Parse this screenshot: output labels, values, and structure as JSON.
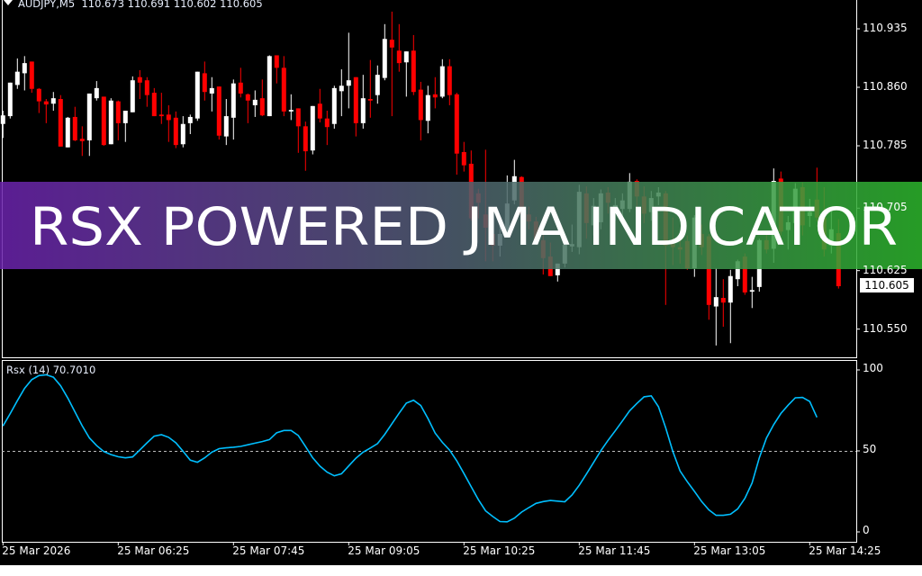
{
  "header": {
    "symbol": "AUDJPY,M5",
    "ohlc": "110.673 110.691 110.602 110.605"
  },
  "banner": {
    "text": "RSX POWERED JMA INDICATOR",
    "gradient_start": "#6a22ab",
    "gradient_mid": "#4f6070",
    "gradient_end": "#2cb52c"
  },
  "colors": {
    "background": "#000000",
    "bull_candle": "#ffffff",
    "bear_candle": "#ff0000",
    "rsx_line": "#00bfff",
    "axis": "#ffffff"
  },
  "current_price": "110.605",
  "indicator_label": "Rsx (14) 70.7010",
  "chart_data": [
    {
      "type": "candlestick",
      "title": "AUDJPY,M5",
      "y_ticks": [
        "110.935",
        "110.860",
        "110.785",
        "110.705",
        "110.625",
        "110.550"
      ],
      "x_ticks": [
        "25 Mar 2026",
        "25 Mar 06:25",
        "25 Mar 07:45",
        "25 Mar 09:05",
        "25 Mar 10:25",
        "25 Mar 11:45",
        "25 Mar 13:05",
        "25 Mar 14:25"
      ],
      "ylim": [
        110.515,
        110.972
      ],
      "ohlc_fields": [
        "open",
        "high",
        "low",
        "close"
      ],
      "candles": [
        [
          110.813,
          110.83,
          110.795,
          110.824
        ],
        [
          110.823,
          110.866,
          110.82,
          110.866
        ],
        [
          110.863,
          110.897,
          110.858,
          110.88
        ],
        [
          110.878,
          110.9,
          110.856,
          110.891
        ],
        [
          110.893,
          110.893,
          110.853,
          110.858
        ],
        [
          110.858,
          110.859,
          110.827,
          110.842
        ],
        [
          110.842,
          110.845,
          110.814,
          110.838
        ],
        [
          110.839,
          110.854,
          110.83,
          110.846
        ],
        [
          110.845,
          110.85,
          110.784,
          110.784
        ],
        [
          110.783,
          110.822,
          110.783,
          110.821
        ],
        [
          110.822,
          110.835,
          110.791,
          110.792
        ],
        [
          110.794,
          110.81,
          110.772,
          110.791
        ],
        [
          110.792,
          110.852,
          110.772,
          110.852
        ],
        [
          110.846,
          110.868,
          110.843,
          110.859
        ],
        [
          110.848,
          110.848,
          110.785,
          110.786
        ],
        [
          110.787,
          110.846,
          110.787,
          110.843
        ],
        [
          110.842,
          110.843,
          110.792,
          110.814
        ],
        [
          110.814,
          110.83,
          110.79,
          110.83
        ],
        [
          110.828,
          110.874,
          110.828,
          110.869
        ],
        [
          110.873,
          110.882,
          110.845,
          110.866
        ],
        [
          110.869,
          110.873,
          110.835,
          110.85
        ],
        [
          110.853,
          110.859,
          110.823,
          110.823
        ],
        [
          110.825,
          110.853,
          110.813,
          110.823
        ],
        [
          110.825,
          110.837,
          110.79,
          110.818
        ],
        [
          110.821,
          110.829,
          110.782,
          110.786
        ],
        [
          110.787,
          110.823,
          110.783,
          110.813
        ],
        [
          110.814,
          110.825,
          110.8,
          110.822
        ],
        [
          110.82,
          110.88,
          110.817,
          110.88
        ],
        [
          110.878,
          110.893,
          110.843,
          110.854
        ],
        [
          110.852,
          110.873,
          110.829,
          110.859
        ],
        [
          110.861,
          110.861,
          110.793,
          110.798
        ],
        [
          110.797,
          110.845,
          110.786,
          110.823
        ],
        [
          110.821,
          110.87,
          110.793,
          110.865
        ],
        [
          110.866,
          110.885,
          110.847,
          110.852
        ],
        [
          110.851,
          110.852,
          110.814,
          110.843
        ],
        [
          110.837,
          110.856,
          110.822,
          110.844
        ],
        [
          110.846,
          110.87,
          110.823,
          110.824
        ],
        [
          110.823,
          110.901,
          110.823,
          110.9
        ],
        [
          110.901,
          110.901,
          110.865,
          110.885
        ],
        [
          110.885,
          110.9,
          110.823,
          110.829
        ],
        [
          110.829,
          110.851,
          110.818,
          110.831
        ],
        [
          110.833,
          110.833,
          110.776,
          110.81
        ],
        [
          110.81,
          110.816,
          110.753,
          110.778
        ],
        [
          110.779,
          110.836,
          110.774,
          110.836
        ],
        [
          110.839,
          110.858,
          110.815,
          110.82
        ],
        [
          110.82,
          110.83,
          110.786,
          110.809
        ],
        [
          110.813,
          110.862,
          110.807,
          110.859
        ],
        [
          110.855,
          110.883,
          110.823,
          110.862
        ],
        [
          110.862,
          110.93,
          110.833,
          110.869
        ],
        [
          110.873,
          110.873,
          110.797,
          110.814
        ],
        [
          110.814,
          110.876,
          110.807,
          110.846
        ],
        [
          110.845,
          110.895,
          110.821,
          110.843
        ],
        [
          110.85,
          110.888,
          110.839,
          110.876
        ],
        [
          110.872,
          110.941,
          110.869,
          110.922
        ],
        [
          110.921,
          110.957,
          110.823,
          110.911
        ],
        [
          110.907,
          110.941,
          110.88,
          110.891
        ],
        [
          110.892,
          110.906,
          110.848,
          110.906
        ],
        [
          110.907,
          110.927,
          110.85,
          110.854
        ],
        [
          110.857,
          110.867,
          110.792,
          110.818
        ],
        [
          110.817,
          110.862,
          110.801,
          110.85
        ],
        [
          110.851,
          110.873,
          110.833,
          110.847
        ],
        [
          110.848,
          110.896,
          110.846,
          110.887
        ],
        [
          110.887,
          110.896,
          110.837,
          110.85
        ],
        [
          110.851,
          110.853,
          110.748,
          110.775
        ],
        [
          110.777,
          110.79,
          110.752,
          110.76
        ],
        [
          110.762,
          110.779,
          110.689,
          110.692
        ],
        [
          110.724,
          110.73,
          110.692,
          110.712
        ],
        [
          110.697,
          110.78,
          110.637,
          110.68
        ],
        [
          110.672,
          110.692,
          110.637,
          110.657
        ],
        [
          110.657,
          110.684,
          110.643,
          110.672
        ],
        [
          110.672,
          110.747,
          110.672,
          110.711
        ],
        [
          110.715,
          110.767,
          110.71,
          110.746
        ],
        [
          110.745,
          110.746,
          110.689,
          110.697
        ],
        [
          110.697,
          110.707,
          110.678,
          110.688
        ],
        [
          110.688,
          110.694,
          110.658,
          110.664
        ],
        [
          110.664,
          110.694,
          110.62,
          110.641
        ],
        [
          110.643,
          110.661,
          110.618,
          110.618
        ],
        [
          110.619,
          110.634,
          110.611,
          110.634
        ],
        [
          110.634,
          110.66,
          110.629,
          110.658
        ],
        [
          110.656,
          110.684,
          110.649,
          110.659
        ],
        [
          110.655,
          110.735,
          110.646,
          110.726
        ],
        [
          110.724,
          110.733,
          110.666,
          110.686
        ],
        [
          110.683,
          110.718,
          110.67,
          110.708
        ],
        [
          110.687,
          110.729,
          110.678,
          110.724
        ],
        [
          110.725,
          110.732,
          110.698,
          110.712
        ],
        [
          110.701,
          110.718,
          110.689,
          110.709
        ],
        [
          110.704,
          110.724,
          110.695,
          110.715
        ],
        [
          110.704,
          110.75,
          110.7,
          110.739
        ],
        [
          110.74,
          110.742,
          110.707,
          110.72
        ],
        [
          110.72,
          110.733,
          110.686,
          110.698
        ],
        [
          110.7,
          110.727,
          110.689,
          110.718
        ],
        [
          110.72,
          110.732,
          110.709,
          110.725
        ],
        [
          110.724,
          110.727,
          110.581,
          110.657
        ],
        [
          110.659,
          110.693,
          110.632,
          110.655
        ],
        [
          110.655,
          110.664,
          110.634,
          110.652
        ],
        [
          110.663,
          110.67,
          110.626,
          110.628
        ],
        [
          110.628,
          110.696,
          110.617,
          110.693
        ],
        [
          110.672,
          110.684,
          110.645,
          110.655
        ],
        [
          110.669,
          110.672,
          110.562,
          110.581
        ],
        [
          110.579,
          110.628,
          110.529,
          110.591
        ],
        [
          110.59,
          110.614,
          110.553,
          110.584
        ],
        [
          110.584,
          110.626,
          110.532,
          110.618
        ],
        [
          110.614,
          110.639,
          110.605,
          110.637
        ],
        [
          110.643,
          110.647,
          110.594,
          110.597
        ],
        [
          110.598,
          110.617,
          110.577,
          110.6
        ],
        [
          110.604,
          110.666,
          110.598,
          110.664
        ],
        [
          110.664,
          110.672,
          110.647,
          110.652
        ],
        [
          110.653,
          110.756,
          110.635,
          110.74
        ],
        [
          110.743,
          110.752,
          110.67,
          110.675
        ],
        [
          110.677,
          110.695,
          110.652,
          110.687
        ],
        [
          110.686,
          110.737,
          110.667,
          110.73
        ],
        [
          110.732,
          110.738,
          110.67,
          110.683
        ],
        [
          110.695,
          110.717,
          110.681,
          110.7
        ],
        [
          110.716,
          110.757,
          110.688,
          110.693
        ],
        [
          110.693,
          110.732,
          110.643,
          110.652
        ],
        [
          110.657,
          110.701,
          110.647,
          110.678
        ],
        [
          110.673,
          110.691,
          110.602,
          110.605
        ]
      ]
    },
    {
      "type": "line",
      "title": "Rsx (14) 70.7010",
      "ylim": [
        0,
        100
      ],
      "y_ticks": [
        "100",
        "50",
        "0"
      ],
      "level_line": 50,
      "series": [
        {
          "name": "Rsx (14)",
          "values": [
            65.4,
            73,
            81,
            88.6,
            94,
            96.5,
            97,
            95.5,
            90.2,
            82.6,
            74,
            65.5,
            58,
            53.3,
            49.6,
            47.7,
            46.4,
            45.7,
            46.3,
            50.6,
            55,
            59.1,
            60,
            58.4,
            55,
            49.8,
            44.3,
            43,
            45.7,
            49.2,
            51.4,
            51.9,
            52.3,
            52.8,
            53.8,
            54.8,
            55.8,
            57,
            61.2,
            62.6,
            62.6,
            59.5,
            52.7,
            45.7,
            40.6,
            36.9,
            34.6,
            35.9,
            40.7,
            45.5,
            49.2,
            51.8,
            54.5,
            60.2,
            66.8,
            73.3,
            79.5,
            81.3,
            78,
            70,
            61,
            55.3,
            50.5,
            43.9,
            36,
            27.9,
            19.9,
            13,
            9.5,
            6.4,
            6.2,
            8.5,
            12.2,
            15,
            17.6,
            18.7,
            19.4,
            19,
            18.6,
            22.8,
            28.8,
            35.7,
            42.9,
            50.1,
            56.5,
            62.4,
            68.5,
            74.8,
            79.3,
            83.4,
            84,
            77.3,
            64.3,
            49.6,
            37.6,
            31,
            25,
            18.7,
            13.6,
            10.2,
            10.2,
            10.9,
            14.2,
            20.7,
            30.2,
            45.7,
            58,
            66.2,
            73.1,
            78.2,
            82.8,
            83,
            80.5,
            70.7
          ]
        }
      ]
    }
  ]
}
